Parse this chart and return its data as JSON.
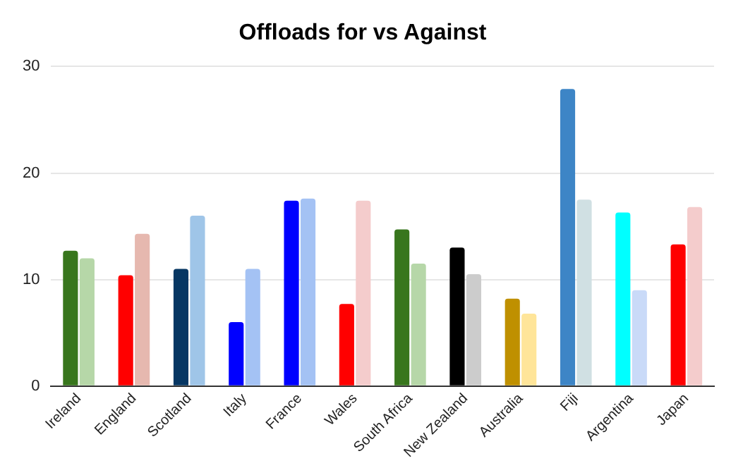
{
  "chart_data": {
    "type": "bar",
    "title": "Offloads for vs Against",
    "categories": [
      "Ireland",
      "England",
      "Scotland",
      "Italy",
      "France",
      "Wales",
      "South Africa",
      "New Zealand",
      "Australia",
      "Fiji",
      "Argentina",
      "Japan"
    ],
    "series": [
      {
        "colors": [
          "#38761d",
          "#ff0000",
          "#073763",
          "#0000ff",
          "#0000ff",
          "#ff0000",
          "#38761d",
          "#000000",
          "#bf9000",
          "#3d85c6",
          "#00ffff",
          "#ff0000"
        ],
        "values": [
          12.7,
          10.4,
          11,
          6,
          17.4,
          7.7,
          14.7,
          13,
          8.2,
          27.9,
          16.3,
          13.3
        ]
      },
      {
        "colors": [
          "#b6d7a8",
          "#e6b8af",
          "#9fc5e8",
          "#a4c2f4",
          "#a4c2f4",
          "#f4cccc",
          "#b6d7a8",
          "#cccccc",
          "#ffe599",
          "#d0e0e3",
          "#c9daf8",
          "#f4cccc"
        ],
        "values": [
          12,
          14.3,
          16,
          11,
          17.6,
          17.4,
          11.5,
          10.5,
          6.8,
          17.5,
          9,
          16.8
        ]
      }
    ],
    "ylim": [
      0,
      30
    ],
    "yticks": [
      0,
      10,
      20,
      30
    ],
    "grid": "y",
    "legend": false
  }
}
